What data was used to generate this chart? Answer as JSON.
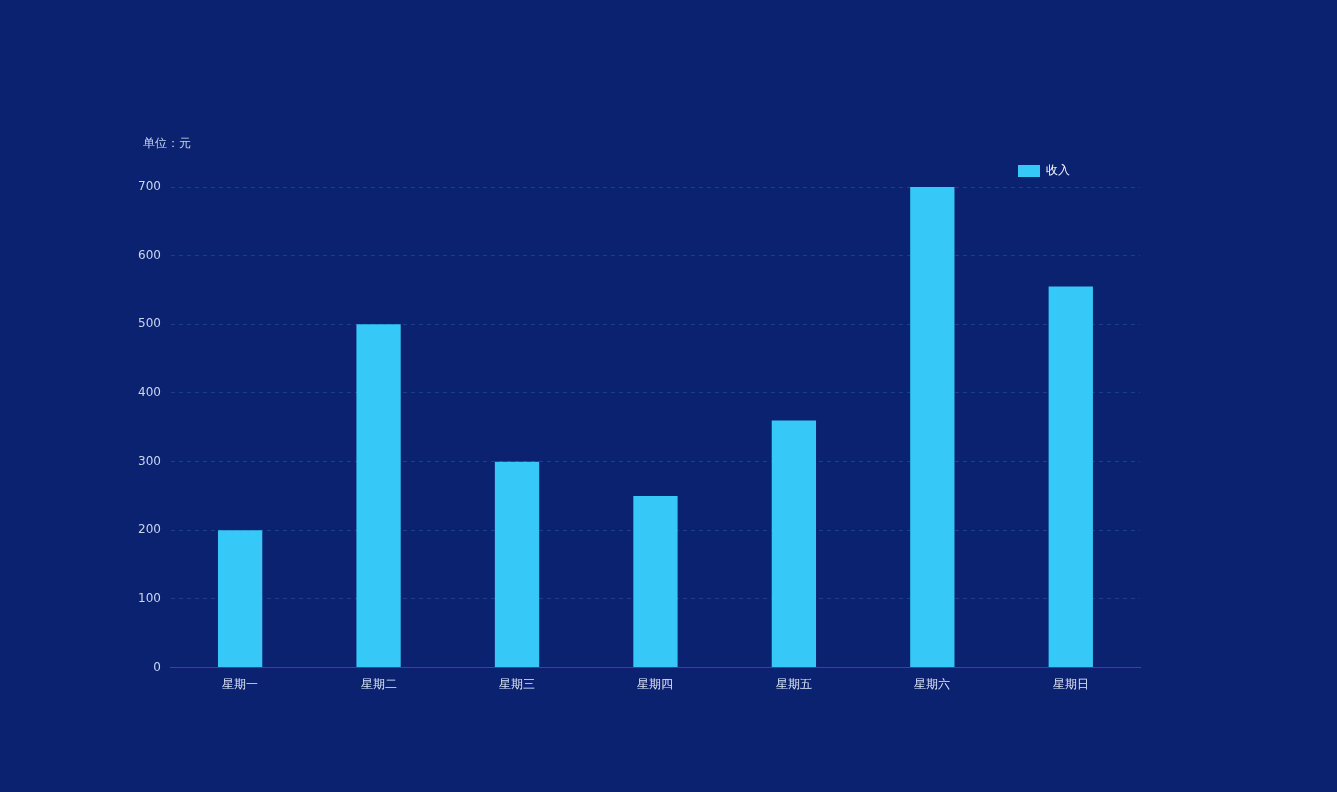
{
  "chart_data": {
    "type": "bar",
    "ylabel": "单位：元",
    "categories": [
      "星期一",
      "星期二",
      "星期三",
      "星期四",
      "星期五",
      "星期六",
      "星期日"
    ],
    "series": [
      {
        "name": "收入",
        "color": "#36c8f6",
        "values": [
          200,
          500,
          300,
          250,
          360,
          700,
          555
        ]
      }
    ],
    "ylim": [
      0,
      700
    ],
    "yticks": [
      0,
      100,
      200,
      300,
      400,
      500,
      600,
      700
    ],
    "grid": "y",
    "legend": "top right"
  }
}
